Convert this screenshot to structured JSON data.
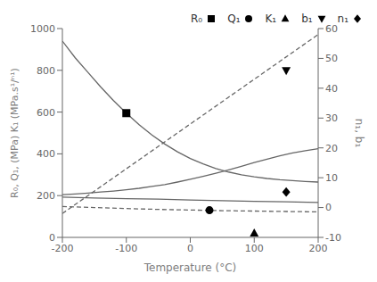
{
  "chart_data": {
    "type": "line",
    "xlabel": "Temperature (°C)",
    "ylabel": "R₀, Q₁, (MPa) K₁ (MPa.s¹/ⁿ¹)",
    "y2label": "n₁, b₁",
    "xlim": [
      -200,
      200
    ],
    "xticks": [
      -200,
      -100,
      0,
      100,
      200
    ],
    "ylim": [
      0,
      1000
    ],
    "yticks": [
      0,
      200,
      400,
      600,
      800,
      1000
    ],
    "y2lim": [
      -10,
      60
    ],
    "y2ticks": [
      -10,
      0,
      10,
      20,
      30,
      40,
      50,
      60
    ],
    "legend": "upper right",
    "series": [
      {
        "type": "line",
        "color": "#666666",
        "line_style": "solid",
        "x": [
          -200,
          -180,
          -160,
          -140,
          -120,
          -100,
          -80,
          -60,
          -40,
          -20,
          0,
          20,
          40,
          60,
          80,
          100,
          120,
          140,
          160,
          180,
          200
        ],
        "values": [
          940,
          860,
          790,
          720,
          655,
          595,
          540,
          490,
          447,
          410,
          378,
          352,
          330,
          313,
          300,
          290,
          282,
          276,
          272,
          268,
          265
        ]
      },
      {
        "type": "line",
        "color": "#666666",
        "line_style": "solid",
        "x": [
          -200,
          -180,
          -160,
          -140,
          -120,
          -100,
          -80,
          -60,
          -40,
          -20,
          0,
          20,
          40,
          60,
          80,
          100,
          120,
          140,
          160,
          180,
          200
        ],
        "values": [
          205,
          208,
          212,
          217,
          222,
          228,
          235,
          244,
          253,
          265,
          278,
          292,
          307,
          323,
          340,
          358,
          374,
          390,
          404,
          415,
          425
        ]
      },
      {
        "type": "line",
        "color": "#666666",
        "line_style": "dashed",
        "x": [
          -200,
          -150,
          -100,
          -50,
          0,
          50,
          100,
          150,
          200
        ],
        "values": [
          148,
          143,
          138,
          134,
          131,
          128,
          126,
          124,
          122
        ]
      },
      {
        "type": "line",
        "color": "#666666",
        "line_style": "dashed",
        "axis": "y2",
        "x": [
          -200,
          -100,
          0,
          100,
          200
        ],
        "values": [
          -2,
          13,
          28,
          43,
          58
        ]
      },
      {
        "type": "line",
        "color": "#666666",
        "line_style": "solid",
        "axis": "y2",
        "x": [
          -200,
          -150,
          -100,
          -50,
          0,
          50,
          100,
          150,
          200
        ],
        "values": [
          3.5,
          3.2,
          3.0,
          2.8,
          2.5,
          2.3,
          2.1,
          1.9,
          1.7
        ]
      },
      {
        "name": "R₀",
        "type": "scatter",
        "marker": "square",
        "color": "#000000",
        "x": [
          -100
        ],
        "values": [
          595
        ]
      },
      {
        "name": "Q₁",
        "type": "scatter",
        "marker": "circle",
        "color": "#000000",
        "x": [
          30
        ],
        "values": [
          130
        ]
      },
      {
        "name": "K₁",
        "type": "scatter",
        "marker": "triangle-up",
        "color": "#000000",
        "x": [
          100
        ],
        "values": [
          20
        ]
      },
      {
        "name": "b₁",
        "type": "scatter",
        "marker": "triangle-down",
        "color": "#000000",
        "axis": "y2",
        "x": [
          150
        ],
        "values": [
          46
        ]
      },
      {
        "name": "n₁",
        "type": "scatter",
        "marker": "diamond",
        "color": "#000000",
        "axis": "y2",
        "x": [
          150
        ],
        "values": [
          5.2
        ]
      }
    ]
  }
}
